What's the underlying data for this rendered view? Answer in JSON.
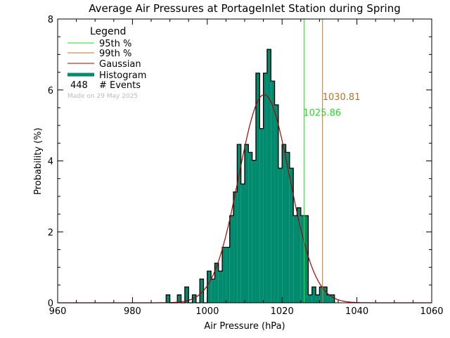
{
  "chart_data": {
    "type": "bar",
    "title": "Average Air Pressures at PortageInlet Station during Spring",
    "xlabel": "Air Pressure (hPa)",
    "ylabel": "Probability (%)",
    "xlim": [
      960,
      1060
    ],
    "ylim": [
      0,
      8
    ],
    "xticks": [
      "960",
      "980",
      "1000",
      "1020",
      "1040",
      "1060"
    ],
    "yticks": [
      "0",
      "2",
      "4",
      "6",
      "8"
    ],
    "bin_width": 1,
    "bin_starts": [
      989,
      990,
      991,
      992,
      993,
      994,
      995,
      996,
      997,
      998,
      999,
      1000,
      1001,
      1002,
      1003,
      1004,
      1005,
      1006,
      1007,
      1008,
      1009,
      1010,
      1011,
      1012,
      1013,
      1014,
      1015,
      1016,
      1017,
      1018,
      1019,
      1020,
      1021,
      1022,
      1023,
      1024,
      1025,
      1026,
      1027,
      1028,
      1029,
      1030,
      1031,
      1032,
      1033
    ],
    "counts": [
      1,
      0,
      0,
      1,
      0,
      2,
      0,
      1,
      0,
      3,
      0,
      4,
      3,
      5,
      4,
      7,
      7,
      11,
      14,
      20,
      15,
      20,
      19,
      18,
      29,
      22,
      29,
      32,
      28,
      25,
      17,
      20,
      19,
      17,
      11,
      12,
      11,
      11,
      1,
      2,
      1,
      2,
      2,
      1,
      1
    ],
    "total_events": 448,
    "percentile_95": 1025.86,
    "percentile_99": 1030.81,
    "percentile_95_label": "1025.86",
    "percentile_99_label": "1030.81",
    "colors": {
      "histogram": "#008b6e",
      "gaussian": "#b00000",
      "p95": "#22dd22",
      "p99": "#b8732a"
    },
    "legend": {
      "title": "Legend",
      "items": [
        "95th %",
        "99th %",
        "Gaussian",
        "Histogram"
      ],
      "events_count": "448",
      "events_label": "# Events",
      "made_on": "Made on 29 May 2025",
      "placement": "top-left"
    }
  }
}
